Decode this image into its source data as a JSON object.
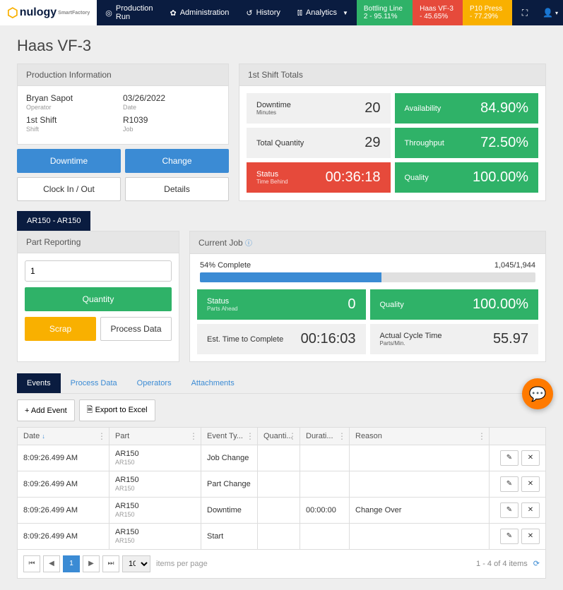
{
  "brand": {
    "name": "nulogy",
    "sub": "SmartFactory"
  },
  "nav": {
    "production": "Production Run",
    "admin": "Administration",
    "history": "History",
    "analytics": "Analytics"
  },
  "statuses": [
    {
      "label": "Bottling Line 2 - 95.11%",
      "color": "green-bg"
    },
    {
      "label": "Haas VF-3 - 45.65%",
      "color": "red-bg"
    },
    {
      "label": "P10 Press - 77.29%",
      "color": "yellow-bg"
    }
  ],
  "page_title": "Haas VF-3",
  "prod_info": {
    "header": "Production Information",
    "operator_val": "Bryan Sapot",
    "operator_lbl": "Operator",
    "date_val": "03/26/2022",
    "date_lbl": "Date",
    "shift_val": "1st Shift",
    "shift_lbl": "Shift",
    "job_val": "R1039",
    "job_lbl": "Job"
  },
  "buttons": {
    "downtime": "Downtime",
    "change": "Change",
    "clock": "Clock In / Out",
    "details": "Details",
    "quantity": "Quantity",
    "scrap": "Scrap",
    "process_data": "Process Data",
    "add_event": "+ Add Event",
    "export": "Export to Excel"
  },
  "shift_totals": {
    "header": "1st Shift Totals",
    "downtime_lbl": "Downtime",
    "downtime_sub": "Minutes",
    "downtime_val": "20",
    "availability_lbl": "Availability",
    "availability_val": "84.90%",
    "totalq_lbl": "Total Quantity",
    "totalq_val": "29",
    "throughput_lbl": "Throughput",
    "throughput_val": "72.50%",
    "status_lbl": "Status",
    "status_sub": "Time Behind",
    "status_val": "00:36:18",
    "quality_lbl": "Quality",
    "quality_val": "100.00%"
  },
  "job_tab": "AR150 - AR150",
  "part_report_header": "Part Reporting",
  "qty_input_value": "1",
  "current_job": {
    "header": "Current Job",
    "complete_pct": 54,
    "complete_lbl": "54% Complete",
    "ratio": "1,045/1,944",
    "status_lbl": "Status",
    "status_sub": "Parts Ahead",
    "status_val": "0",
    "quality_lbl": "Quality",
    "quality_val": "100.00%",
    "eta_lbl": "Est. Time to Complete",
    "eta_val": "00:16:03",
    "cycle_lbl": "Actual Cycle Time",
    "cycle_sub": "Parts/Min.",
    "cycle_val": "55.97"
  },
  "tabs": {
    "events": "Events",
    "process": "Process Data",
    "operators": "Operators",
    "attachments": "Attachments"
  },
  "table": {
    "cols": {
      "date": "Date",
      "part": "Part",
      "event": "Event Ty...",
      "qty": "Quanti...",
      "dur": "Durati...",
      "reason": "Reason"
    },
    "rows": [
      {
        "date": "8:09:26.499 AM",
        "part": "AR150",
        "partsub": "AR150",
        "event": "Job Change",
        "qty": "",
        "dur": "",
        "reason": ""
      },
      {
        "date": "8:09:26.499 AM",
        "part": "AR150",
        "partsub": "AR150",
        "event": "Part Change",
        "qty": "",
        "dur": "",
        "reason": ""
      },
      {
        "date": "8:09:26.499 AM",
        "part": "AR150",
        "partsub": "AR150",
        "event": "Downtime",
        "qty": "",
        "dur": "00:00:00",
        "reason": "Change Over"
      },
      {
        "date": "8:09:26.499 AM",
        "part": "AR150",
        "partsub": "AR150",
        "event": "Start",
        "qty": "",
        "dur": "",
        "reason": ""
      }
    ]
  },
  "pager": {
    "page": "1",
    "size": "10",
    "per_page": "items per page",
    "info": "1 - 4 of 4 items"
  }
}
